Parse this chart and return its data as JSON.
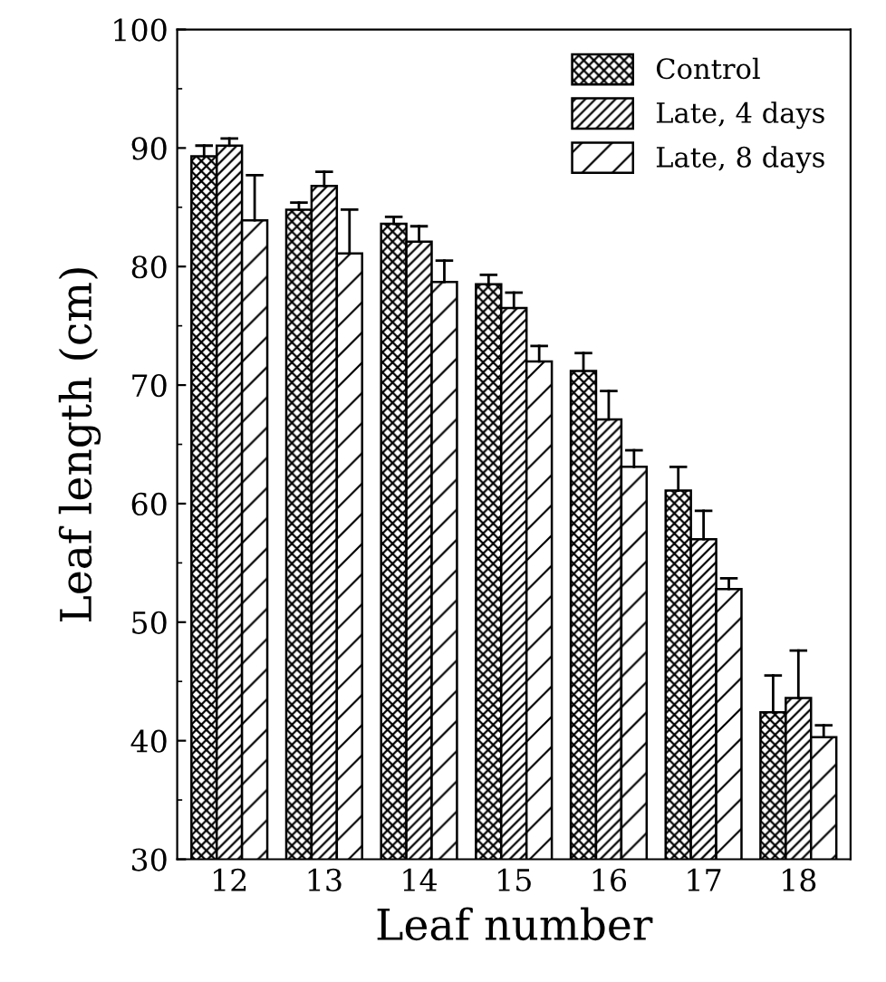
{
  "chart_data": {
    "type": "bar",
    "xlabel": "Leaf number",
    "ylabel": "Leaf length (cm)",
    "categories": [
      "12",
      "13",
      "14",
      "15",
      "16",
      "17",
      "18"
    ],
    "series": [
      {
        "name": "Control",
        "color": "#000000",
        "values": [
          89.3,
          84.8,
          83.6,
          78.5,
          71.2,
          61.1,
          42.4
        ],
        "errors": [
          [
            89.3,
            90.2
          ],
          [
            84.8,
            85.4
          ],
          [
            83.6,
            84.2
          ],
          [
            78.5,
            79.3
          ],
          [
            71.2,
            72.7
          ],
          [
            61.1,
            63.1
          ],
          [
            42.4,
            45.5
          ]
        ]
      },
      {
        "name": "Late, 4 days",
        "color": "#000000",
        "values": [
          90.2,
          86.8,
          82.1,
          76.5,
          67.1,
          57.0,
          43.6
        ],
        "errors": [
          [
            90.2,
            90.8
          ],
          [
            86.8,
            88.0
          ],
          [
            82.1,
            83.4
          ],
          [
            76.5,
            77.8
          ],
          [
            67.1,
            69.5
          ],
          [
            57.0,
            59.4
          ],
          [
            43.6,
            47.6
          ]
        ]
      },
      {
        "name": "Late, 8 days",
        "color": "#000000",
        "values": [
          83.9,
          81.1,
          78.7,
          72.0,
          63.1,
          52.8,
          40.3
        ],
        "errors": [
          [
            83.9,
            87.7
          ],
          [
            81.1,
            84.8
          ],
          [
            78.7,
            80.5
          ],
          [
            72.0,
            73.3
          ],
          [
            63.1,
            64.5
          ],
          [
            52.8,
            53.7
          ],
          [
            40.3,
            41.3
          ]
        ]
      }
    ],
    "ylim": [
      30,
      100
    ],
    "yticks": [
      30,
      40,
      50,
      60,
      70,
      80,
      90,
      100
    ],
    "legend": "top right",
    "grid": false
  }
}
